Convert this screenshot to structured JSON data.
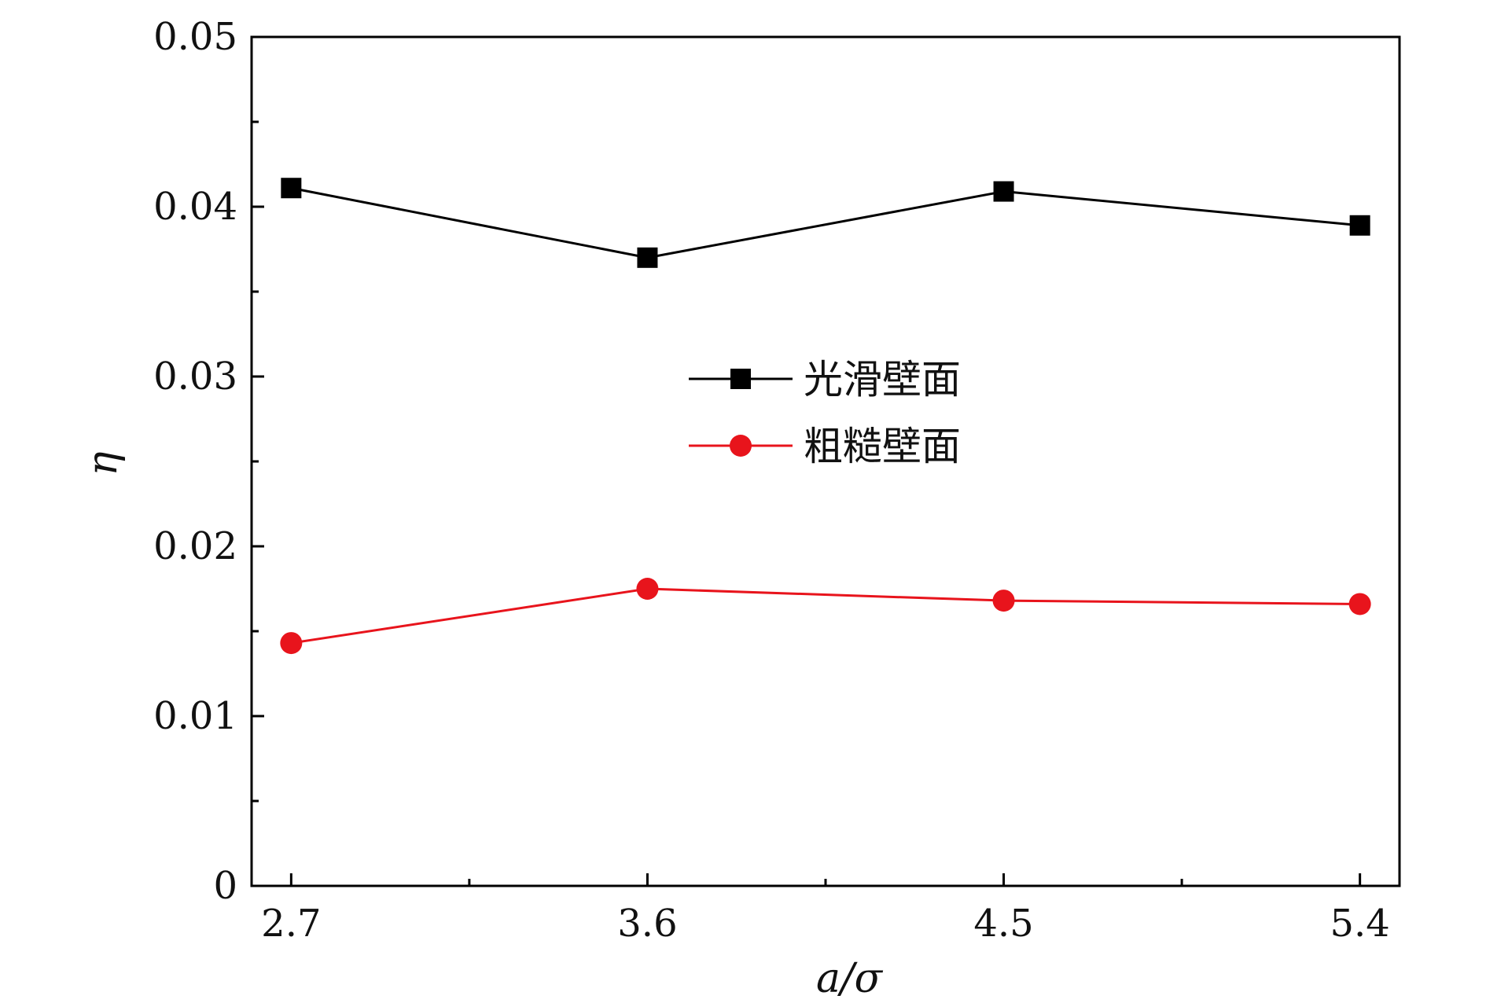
{
  "chart_data": {
    "type": "line",
    "title": "",
    "xlabel": "a/σ",
    "ylabel": "η",
    "x": [
      2.7,
      3.6,
      4.5,
      5.4
    ],
    "x_ticks": [
      "2.7",
      "3.6",
      "4.5",
      "5.4"
    ],
    "y_ticks": [
      "0",
      "0.01",
      "0.02",
      "0.03",
      "0.04",
      "0.05"
    ],
    "xlim": [
      2.6,
      5.5
    ],
    "ylim": [
      0,
      0.05
    ],
    "grid": false,
    "legend_position": "center",
    "series": [
      {
        "name": "光滑壁面",
        "values": [
          0.0411,
          0.037,
          0.0409,
          0.0389
        ],
        "color": "#000000",
        "marker": "square"
      },
      {
        "name": "粗糙壁面",
        "values": [
          0.0143,
          0.0175,
          0.0168,
          0.0166
        ],
        "color": "#e8141c",
        "marker": "circle"
      }
    ]
  }
}
